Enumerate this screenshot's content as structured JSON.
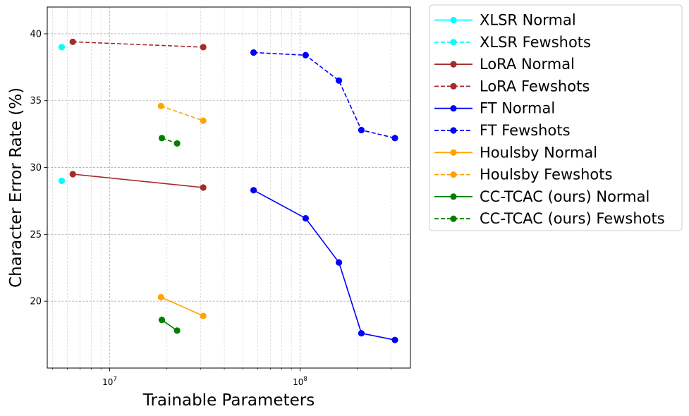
{
  "chart_data": {
    "type": "line",
    "xscale": "log",
    "xlabel": "Trainable Parameters",
    "ylabel": "Character Error Rate (%)",
    "xlim": [
      4700000,
      380000000
    ],
    "ylim": [
      15.0,
      42.0
    ],
    "grid": true,
    "legend_position": "outside-right-top",
    "x_major_ticks": [
      {
        "value": 10000000,
        "base": "10",
        "exp": "7"
      },
      {
        "value": 100000000,
        "base": "10",
        "exp": "8"
      }
    ],
    "y_ticks": [
      {
        "value": 20,
        "label": "20"
      },
      {
        "value": 25,
        "label": "25"
      },
      {
        "value": 30,
        "label": "30"
      },
      {
        "value": 35,
        "label": "35"
      },
      {
        "value": 40,
        "label": "40"
      }
    ],
    "series": [
      {
        "name": "XLSR Normal",
        "color": "#00ffff",
        "style": "solid",
        "x": [
          5600000
        ],
        "y": [
          29.0
        ]
      },
      {
        "name": "XLSR Fewshots",
        "color": "#00ffff",
        "style": "dashed",
        "x": [
          5600000
        ],
        "y": [
          39.0
        ]
      },
      {
        "name": "LoRA Normal",
        "color": "#a52a2a",
        "style": "solid",
        "x": [
          6400000,
          31000000
        ],
        "y": [
          29.5,
          28.5
        ]
      },
      {
        "name": "LoRA Fewshots",
        "color": "#a52a2a",
        "style": "dashed",
        "x": [
          6400000,
          31000000
        ],
        "y": [
          39.4,
          39.0
        ]
      },
      {
        "name": "FT Normal",
        "color": "#0000ff",
        "style": "solid",
        "x": [
          57000000,
          107000000,
          160000000,
          210000000,
          315000000
        ],
        "y": [
          28.3,
          26.2,
          22.9,
          17.6,
          17.1
        ]
      },
      {
        "name": "FT Fewshots",
        "color": "#0000ff",
        "style": "dashed",
        "x": [
          57000000,
          107000000,
          160000000,
          210000000,
          315000000
        ],
        "y": [
          38.6,
          38.4,
          36.5,
          32.8,
          32.2
        ]
      },
      {
        "name": "Houlsby Normal",
        "color": "#ffa500",
        "style": "solid",
        "x": [
          18600000,
          31000000
        ],
        "y": [
          20.3,
          18.9
        ]
      },
      {
        "name": "Houlsby Fewshots",
        "color": "#ffa500",
        "style": "dashed",
        "x": [
          18600000,
          31000000
        ],
        "y": [
          34.6,
          33.5
        ]
      },
      {
        "name": "CC-TCAC (ours) Normal",
        "color": "#008000",
        "style": "solid",
        "x": [
          18800000,
          22600000
        ],
        "y": [
          18.6,
          17.8
        ]
      },
      {
        "name": "CC-TCAC (ours) Fewshots",
        "color": "#008000",
        "style": "dashed",
        "x": [
          18800000,
          22600000
        ],
        "y": [
          32.2,
          31.8
        ]
      }
    ]
  }
}
